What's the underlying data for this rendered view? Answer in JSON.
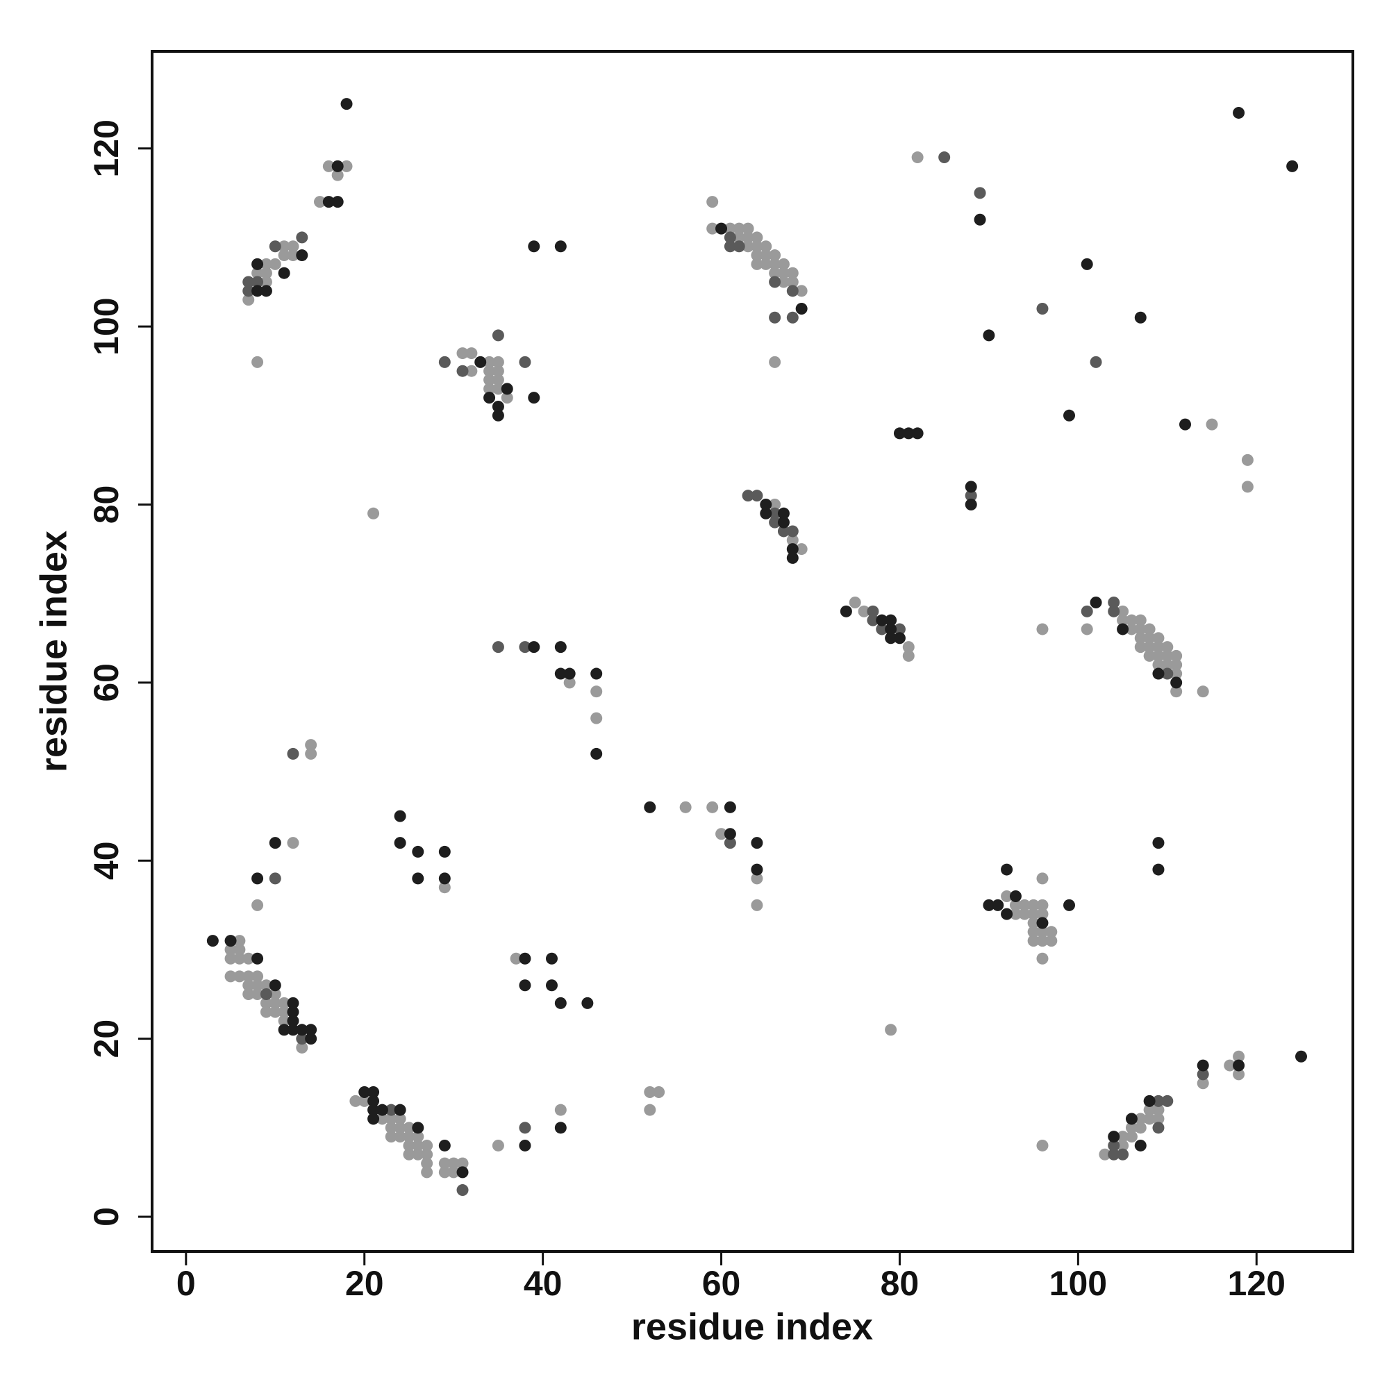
{
  "chart_data": {
    "type": "scatter",
    "xlabel": "residue index",
    "ylabel": "residue index",
    "xlim": [
      -3.8,
      130.8
    ],
    "ylim": [
      -3.9,
      130.9
    ],
    "xticks": [
      0,
      20,
      40,
      60,
      80,
      100,
      120
    ],
    "yticks": [
      0,
      20,
      40,
      60,
      80,
      100,
      120
    ],
    "grid": false,
    "series": [
      {
        "color": "#9a9a9a",
        "x": [
          16,
          18,
          17,
          15,
          12,
          11,
          11,
          12,
          10,
          9,
          8,
          9,
          9,
          7,
          8,
          31,
          32,
          32,
          34,
          35,
          34,
          35,
          34,
          35,
          34,
          35,
          36,
          59,
          59,
          61,
          62,
          63,
          62,
          63,
          64,
          63,
          64,
          65,
          64,
          65,
          66,
          64,
          65,
          66,
          67,
          66,
          67,
          68,
          67,
          68,
          69,
          66,
          82,
          115,
          119,
          119,
          66,
          68,
          69,
          75,
          76,
          81,
          81,
          105,
          105,
          106,
          107,
          106,
          107,
          108,
          107,
          108,
          109,
          107,
          108,
          109,
          110,
          108,
          109,
          110,
          111,
          109,
          110,
          111,
          111,
          111,
          114,
          101,
          96,
          43,
          46,
          46,
          14,
          14,
          21,
          56,
          59,
          60,
          64,
          64,
          12,
          8,
          29,
          92,
          93,
          94,
          95,
          96,
          93,
          94,
          95,
          96,
          95,
          95,
          96,
          97,
          95,
          96,
          97,
          96,
          96,
          79,
          6,
          5,
          6,
          5,
          6,
          7,
          5,
          6,
          7,
          8,
          7,
          8,
          9,
          7,
          8,
          10,
          9,
          10,
          11,
          9,
          10,
          11,
          11,
          13,
          37,
          19,
          20,
          22,
          23,
          24,
          23,
          24,
          25,
          23,
          24,
          25,
          26,
          25,
          26,
          27,
          25,
          26,
          27,
          27,
          27,
          29,
          30,
          31,
          29,
          30,
          35,
          42,
          52,
          53,
          52,
          96,
          103,
          105,
          106,
          105,
          106,
          107,
          107,
          108,
          108,
          109,
          109,
          114,
          117,
          118,
          118
        ],
        "values": [
          118,
          118,
          117,
          114,
          109,
          109,
          108,
          108,
          107,
          107,
          106,
          106,
          105,
          103,
          96,
          97,
          97,
          95,
          96,
          96,
          95,
          95,
          94,
          94,
          93,
          93,
          92,
          114,
          111,
          111,
          111,
          111,
          110,
          110,
          110,
          109,
          109,
          109,
          108,
          108,
          108,
          107,
          107,
          107,
          107,
          106,
          106,
          106,
          105,
          105,
          104,
          96,
          119,
          89,
          85,
          82,
          80,
          76,
          75,
          69,
          68,
          64,
          63,
          68,
          67,
          67,
          67,
          66,
          66,
          66,
          65,
          65,
          65,
          64,
          64,
          64,
          64,
          63,
          63,
          63,
          63,
          62,
          62,
          62,
          61,
          59,
          59,
          66,
          66,
          60,
          59,
          56,
          53,
          52,
          79,
          46,
          46,
          43,
          38,
          35,
          42,
          35,
          37,
          36,
          35,
          35,
          35,
          35,
          34,
          34,
          34,
          34,
          33,
          32,
          32,
          32,
          31,
          31,
          31,
          38,
          29,
          21,
          31,
          30,
          30,
          29,
          29,
          29,
          27,
          27,
          27,
          27,
          26,
          26,
          26,
          25,
          25,
          25,
          24,
          24,
          24,
          23,
          23,
          23,
          22,
          19,
          29,
          13,
          13,
          11,
          11,
          11,
          10,
          10,
          10,
          9,
          9,
          9,
          9,
          8,
          8,
          8,
          7,
          7,
          7,
          6,
          5,
          6,
          6,
          6,
          5,
          5,
          8,
          12,
          14,
          14,
          12,
          8,
          7,
          9,
          9,
          8,
          10,
          10,
          11,
          11,
          12,
          12,
          11,
          15,
          17,
          18,
          16
        ]
      },
      {
        "color": "#5a5a5a",
        "x": [
          13,
          10,
          7,
          8,
          7,
          29,
          31,
          35,
          38,
          61,
          61,
          62,
          66,
          68,
          66,
          68,
          85,
          89,
          96,
          102,
          88,
          63,
          64,
          66,
          66,
          67,
          68,
          77,
          77,
          78,
          80,
          101,
          104,
          104,
          110,
          35,
          38,
          12,
          61,
          10,
          9,
          13,
          23,
          31,
          38,
          104,
          105,
          104,
          109,
          110,
          109,
          114
        ],
        "values": [
          110,
          109,
          105,
          105,
          104,
          96,
          95,
          99,
          96,
          110,
          109,
          109,
          105,
          104,
          101,
          101,
          119,
          115,
          102,
          96,
          81,
          81,
          81,
          79,
          78,
          77,
          77,
          68,
          67,
          66,
          66,
          68,
          69,
          68,
          61,
          64,
          64,
          52,
          42,
          38,
          25,
          20,
          12,
          3,
          10,
          7,
          7,
          8,
          13,
          13,
          10,
          16
        ]
      },
      {
        "color": "#1e1e1e",
        "x": [
          18,
          17,
          16,
          17,
          13,
          8,
          11,
          8,
          9,
          33,
          34,
          35,
          35,
          36,
          39,
          39,
          42,
          60,
          69,
          89,
          90,
          101,
          107,
          99,
          112,
          118,
          124,
          80,
          81,
          82,
          88,
          88,
          65,
          65,
          67,
          67,
          68,
          68,
          74,
          78,
          79,
          79,
          79,
          80,
          102,
          105,
          109,
          111,
          39,
          42,
          42,
          43,
          46,
          46,
          52,
          61,
          61,
          64,
          64,
          8,
          10,
          24,
          24,
          26,
          26,
          29,
          29,
          90,
          91,
          92,
          93,
          92,
          96,
          99,
          109,
          109,
          3,
          5,
          8,
          10,
          12,
          12,
          12,
          11,
          12,
          13,
          14,
          14,
          38,
          41,
          38,
          41,
          42,
          45,
          20,
          21,
          21,
          21,
          22,
          21,
          24,
          26,
          29,
          31,
          38,
          42,
          104,
          106,
          107,
          108,
          114,
          118,
          125
        ],
        "values": [
          125,
          118,
          114,
          114,
          108,
          107,
          106,
          104,
          104,
          96,
          92,
          91,
          90,
          93,
          92,
          109,
          109,
          111,
          102,
          112,
          99,
          107,
          101,
          90,
          89,
          124,
          118,
          88,
          88,
          88,
          82,
          80,
          80,
          79,
          79,
          78,
          75,
          74,
          68,
          67,
          67,
          66,
          65,
          65,
          69,
          66,
          61,
          60,
          64,
          64,
          61,
          61,
          61,
          52,
          46,
          46,
          43,
          42,
          39,
          38,
          42,
          45,
          42,
          41,
          38,
          41,
          38,
          35,
          35,
          39,
          36,
          34,
          33,
          35,
          42,
          39,
          31,
          31,
          29,
          26,
          24,
          23,
          22,
          21,
          21,
          21,
          21,
          20,
          29,
          29,
          26,
          26,
          24,
          24,
          14,
          14,
          13,
          12,
          12,
          11,
          12,
          10,
          8,
          5,
          8,
          10,
          9,
          11,
          8,
          13,
          17,
          17,
          18
        ]
      }
    ]
  }
}
